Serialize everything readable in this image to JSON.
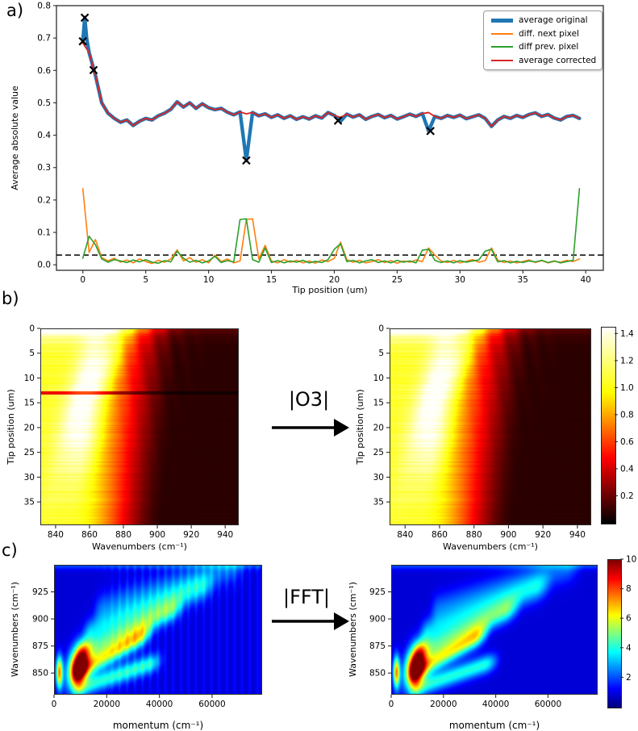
{
  "figure": {
    "background": "#ffffff",
    "panel_a_label": "a)",
    "panel_b_label": "b)",
    "panel_c_label": "c)",
    "arrow_b_label": "|O3|",
    "arrow_c_label": "|FFT|"
  },
  "chart_data": [
    {
      "id": "a",
      "type": "line",
      "xlabel": "Tip position (um)",
      "ylabel": "Average absolute value",
      "xlim": [
        -2.1,
        41.4
      ],
      "ylim": [
        -0.017,
        0.8
      ],
      "xticks": [
        0,
        5,
        10,
        15,
        20,
        25,
        30,
        35,
        40
      ],
      "yticks": [
        0.0,
        0.1,
        0.2,
        0.3,
        0.4,
        0.5,
        0.6,
        0.7,
        0.8
      ],
      "threshold_dashed_y": 0.03,
      "legend": [
        "average original",
        "diff. next pixel",
        "diff prev. pixel",
        "average corrected"
      ],
      "colors": {
        "original": "#1f77b4",
        "diff_next": "#ff7f0e",
        "diff_prev": "#2ca02c",
        "corrected": "#d62728",
        "marker": "#000000",
        "threshold": "#000000"
      },
      "x_start": 0.0,
      "x_step": 0.5,
      "corrected_y": [
        0.685,
        0.655,
        0.585,
        0.5,
        0.468,
        0.452,
        0.44,
        0.447,
        0.43,
        0.443,
        0.452,
        0.447,
        0.46,
        0.468,
        0.48,
        0.503,
        0.487,
        0.5,
        0.483,
        0.497,
        0.485,
        0.479,
        0.483,
        0.471,
        0.463,
        0.472,
        0.466,
        0.47,
        0.46,
        0.466,
        0.455,
        0.463,
        0.452,
        0.46,
        0.449,
        0.457,
        0.45,
        0.46,
        0.453,
        0.47,
        0.461,
        0.455,
        0.465,
        0.456,
        0.463,
        0.449,
        0.458,
        0.464,
        0.454,
        0.461,
        0.45,
        0.457,
        0.465,
        0.458,
        0.467,
        0.47,
        0.458,
        0.452,
        0.461,
        0.455,
        0.462,
        0.451,
        0.457,
        0.463,
        0.452,
        0.427,
        0.447,
        0.458,
        0.452,
        0.461,
        0.455,
        0.464,
        0.469,
        0.458,
        0.464,
        0.453,
        0.447,
        0.458,
        0.461,
        0.452
      ],
      "original_head": {
        "x": [
          0.0,
          0.15,
          0.3
        ],
        "y": [
          0.69,
          0.763,
          0.7
        ]
      },
      "original_overrides": [
        [
          13.0,
          0.322
        ],
        [
          20.5,
          0.443
        ],
        [
          27.5,
          0.413
        ]
      ],
      "diff_next_y": [
        0.235,
        0.038,
        0.078,
        0.022,
        0.012,
        0.02,
        0.008,
        0.015,
        0.006,
        0.018,
        0.01,
        0.004,
        0.014,
        0.008,
        0.018,
        0.046,
        0.012,
        0.022,
        0.008,
        0.016,
        0.006,
        0.03,
        0.01,
        0.018,
        0.006,
        0.012,
        0.14,
        0.142,
        0.018,
        0.06,
        0.012,
        0.006,
        0.016,
        0.008,
        0.014,
        0.006,
        0.012,
        0.005,
        0.015,
        0.01,
        0.02,
        0.07,
        0.016,
        0.008,
        0.014,
        0.006,
        0.01,
        0.016,
        0.007,
        0.013,
        0.005,
        0.012,
        0.008,
        0.015,
        0.01,
        0.052,
        0.03,
        0.012,
        0.007,
        0.014,
        0.006,
        0.011,
        0.016,
        0.008,
        0.013,
        0.052,
        0.015,
        0.007,
        0.012,
        0.006,
        0.01,
        0.015,
        0.007,
        0.013,
        0.006,
        0.011,
        0.008,
        0.014,
        0.01,
        0.018
      ],
      "diff_prev_y": [
        0.02,
        0.088,
        0.062,
        0.018,
        0.008,
        0.016,
        0.012,
        0.007,
        0.015,
        0.009,
        0.016,
        0.008,
        0.005,
        0.013,
        0.009,
        0.042,
        0.02,
        0.008,
        0.014,
        0.006,
        0.012,
        0.026,
        0.007,
        0.013,
        0.009,
        0.14,
        0.142,
        0.016,
        0.008,
        0.052,
        0.007,
        0.013,
        0.006,
        0.012,
        0.008,
        0.014,
        0.006,
        0.011,
        0.007,
        0.016,
        0.048,
        0.065,
        0.01,
        0.014,
        0.006,
        0.012,
        0.016,
        0.007,
        0.012,
        0.006,
        0.014,
        0.008,
        0.012,
        0.006,
        0.045,
        0.048,
        0.014,
        0.007,
        0.012,
        0.006,
        0.013,
        0.008,
        0.012,
        0.015,
        0.042,
        0.048,
        0.009,
        0.013,
        0.006,
        0.011,
        0.007,
        0.012,
        0.009,
        0.014,
        0.007,
        0.012,
        0.006,
        0.01,
        0.014,
        0.235
      ],
      "outlier_markers": [
        [
          0.0,
          0.69
        ],
        [
          0.15,
          0.763
        ],
        [
          0.85,
          0.601
        ],
        [
          13.0,
          0.322
        ],
        [
          20.3,
          0.445
        ],
        [
          27.65,
          0.413
        ]
      ]
    },
    {
      "id": "b",
      "type": "heatmap",
      "colormap": "hot",
      "transform_label": "|O3|",
      "xlabel": "Wavenumbers (cm⁻¹)",
      "ylabel": "Tip position (um)",
      "xlim": [
        831,
        948
      ],
      "ylim": [
        0,
        39.7
      ],
      "xticks": [
        840,
        860,
        880,
        900,
        920,
        940
      ],
      "yticks": [
        0,
        5,
        10,
        15,
        20,
        25,
        30,
        35
      ],
      "colorbar": {
        "vmin": 0.0,
        "vmax": 1.45,
        "ticks": [
          0.2,
          0.4,
          0.6,
          0.8,
          1.0,
          1.2,
          1.4
        ]
      },
      "images": [
        {
          "name": "original",
          "artifact_line_tip": 13
        },
        {
          "name": "corrected",
          "artifact_line_tip": null
        }
      ],
      "render": {
        "left_value": 1.05,
        "edge": [
          0.2,
          0.72,
          -0.04,
          -0.1
        ],
        "top_glow": 0.65,
        "streaks": [
          [
            0.3,
            -0.28,
            0.055,
            0.33,
            0.28,
            0.38
          ],
          [
            0.4,
            -0.34,
            0.05,
            0.18,
            0.13,
            0.3
          ],
          [
            0.36,
            -0.22,
            0.05,
            0.57,
            0.16,
            0.26
          ]
        ],
        "ripple": 0.09,
        "row_noise": 0.05,
        "artifact_dim": 0.42
      }
    },
    {
      "id": "c",
      "type": "heatmap",
      "colormap": "jet",
      "transform_label": "|FFT|",
      "xlabel": "momentum (cm⁻¹)",
      "ylabel": "Wavenumbers (cm⁻¹)",
      "xlim": [
        0,
        79000
      ],
      "ylim": [
        830,
        950
      ],
      "xticks": [
        0,
        20000,
        40000,
        60000
      ],
      "yticks": [
        850,
        875,
        900,
        925
      ],
      "colorbar": {
        "vmin": 0,
        "vmax": 10,
        "ticks": [
          2,
          4,
          6,
          8,
          10
        ]
      },
      "images": [
        {
          "name": "fft_original",
          "stripes": true
        },
        {
          "name": "fft_corrected",
          "stripes": false
        }
      ],
      "render": {
        "background": 0.85,
        "blobs": [
          [
            0.115,
            0.22,
            0.045,
            0.16,
            9.6,
            0.1
          ],
          [
            0.024,
            0.17,
            0.016,
            0.12,
            6.5,
            0.0
          ]
        ],
        "fans": [
          [
            0.07,
            0.9,
            0.055,
            4.8,
            0.1,
            0.45
          ],
          [
            0.22,
            0.75,
            0.06,
            3.0,
            0.12,
            0.6
          ],
          [
            0.38,
            0.62,
            0.07,
            2.2,
            0.15,
            0.75
          ],
          [
            -0.02,
            0.55,
            0.05,
            3.2,
            0.1,
            0.5
          ],
          [
            0.55,
            0.5,
            0.08,
            1.4,
            0.2,
            0.9
          ]
        ],
        "top_band": 1.1,
        "stripe_amp": 0.5
      }
    }
  ]
}
